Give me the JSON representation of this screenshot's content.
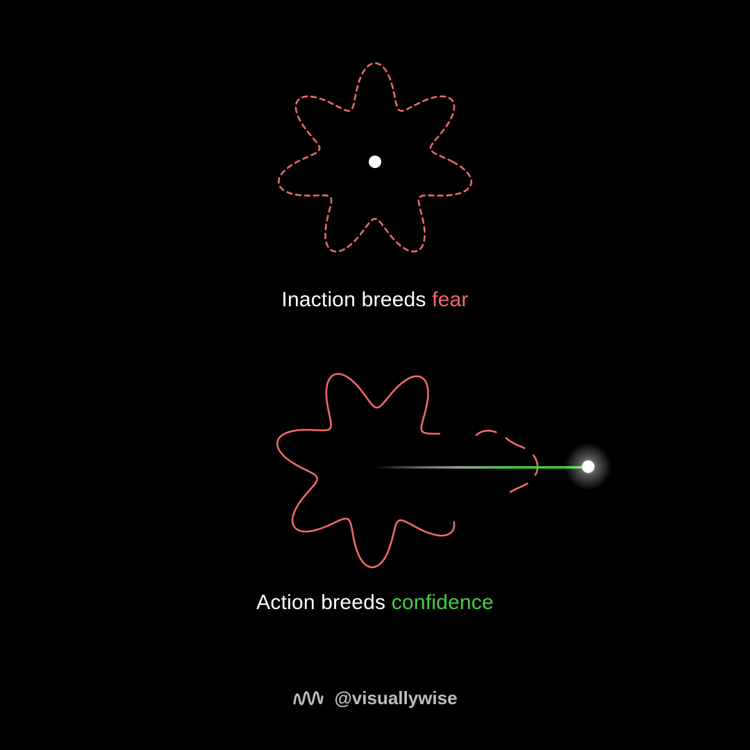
{
  "top_panel": {
    "caption_prefix": "Inaction breeds ",
    "caption_highlight": "fear",
    "outline_color": "#f06a6a",
    "center_dot_color": "#ffffff"
  },
  "bottom_panel": {
    "caption_prefix": "Action breeds ",
    "caption_highlight": "confidence",
    "outline_color": "#f06a6a",
    "ray_color": "#43d143"
  },
  "footer": {
    "logo_icon": "wave-logo-icon",
    "handle": "@visuallywise"
  }
}
